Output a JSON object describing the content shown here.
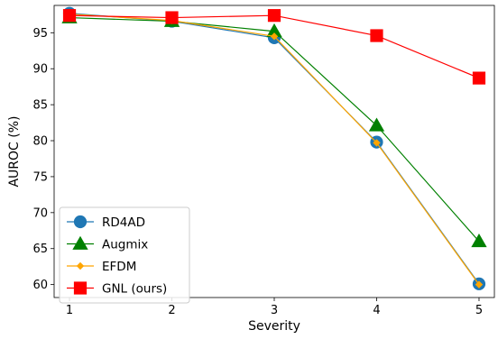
{
  "chart_data": {
    "type": "line",
    "title": "",
    "xlabel": "Severity",
    "ylabel": "AUROC (%)",
    "x": [
      1,
      2,
      3,
      4,
      5
    ],
    "xlim": [
      0.85,
      5.15
    ],
    "ylim": [
      58.2,
      98.8
    ],
    "xticks": [
      1,
      2,
      3,
      4,
      5
    ],
    "yticks": [
      60,
      65,
      70,
      75,
      80,
      85,
      90,
      95
    ],
    "grid": false,
    "legend_position": "lower-left",
    "series": [
      {
        "name": "RD4AD",
        "values": [
          97.7,
          96.6,
          94.3,
          79.8,
          60.1
        ],
        "color": "#1f77b4",
        "marker": "circle"
      },
      {
        "name": "Augmix",
        "values": [
          97.1,
          96.6,
          95.2,
          82.1,
          66.0
        ],
        "color": "#008000",
        "marker": "triangle"
      },
      {
        "name": "EFDM",
        "values": [
          97.6,
          96.7,
          94.5,
          79.7,
          60.0
        ],
        "color": "#ffa500",
        "marker": "diamond"
      },
      {
        "name": "GNL (ours)",
        "values": [
          97.4,
          97.1,
          97.4,
          94.6,
          88.7
        ],
        "color": "#ff0000",
        "marker": "square"
      }
    ]
  }
}
